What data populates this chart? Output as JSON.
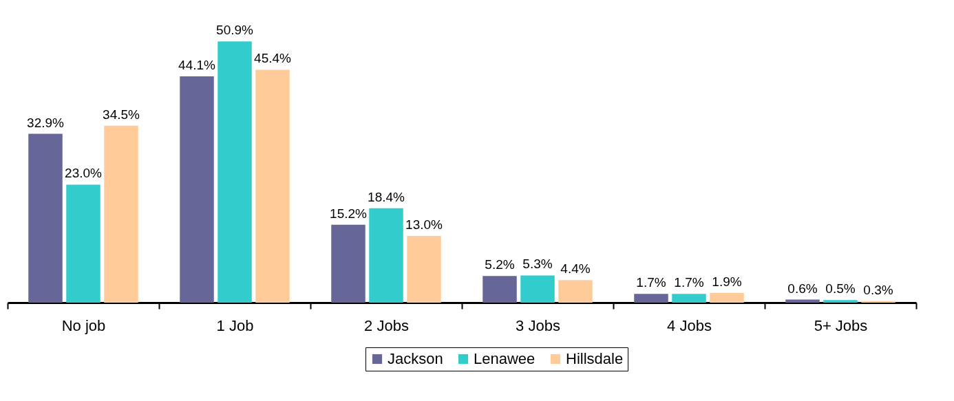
{
  "chart_data": {
    "type": "bar",
    "categories": [
      "No job",
      "1 Job",
      "2 Jobs",
      "3 Jobs",
      "4 Jobs",
      "5+ Jobs"
    ],
    "legend": "bottom",
    "series": [
      {
        "name": "Jackson",
        "color": "#666699",
        "values": [
          32.9,
          44.1,
          15.2,
          5.2,
          1.7,
          0.6
        ],
        "value_labels": [
          "32.9%",
          "44.1%",
          "15.2%",
          "5.2%",
          "1.7%",
          "0.6%"
        ]
      },
      {
        "name": "Lenawee",
        "color": "#33cccc",
        "values": [
          23.0,
          50.9,
          18.4,
          5.3,
          1.7,
          0.5
        ],
        "value_labels": [
          "23.0%",
          "50.9%",
          "18.4%",
          "5.3%",
          "1.7%",
          "0.5%"
        ]
      },
      {
        "name": "Hillsdale",
        "color": "#ffcc99",
        "values": [
          34.5,
          45.4,
          13.0,
          4.4,
          1.9,
          0.3
        ],
        "value_labels": [
          "34.5%",
          "45.4%",
          "13.0%",
          "4.4%",
          "1.9%",
          "0.3%"
        ]
      }
    ]
  }
}
